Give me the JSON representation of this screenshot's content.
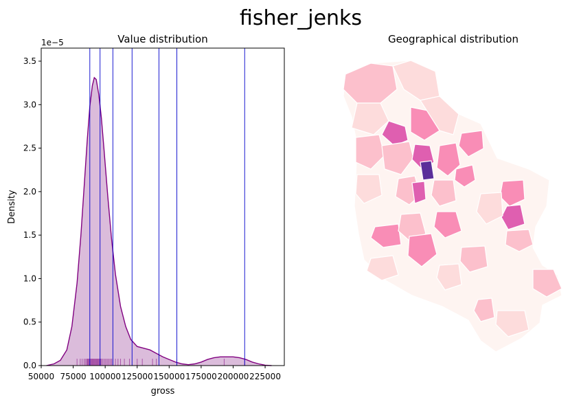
{
  "figure": {
    "suptitle": "fisher_jenks"
  },
  "chart_data": [
    {
      "type": "area",
      "title": "Value distribution",
      "xlabel": "gross",
      "ylabel": "Density",
      "y_scale_label": "1e−5",
      "xlim": [
        50000,
        240000
      ],
      "ylim": [
        0,
        3.65
      ],
      "x_ticks": [
        50000,
        75000,
        100000,
        125000,
        150000,
        175000,
        200000,
        225000
      ],
      "x_tick_labels": [
        "50000",
        "75000",
        "100000",
        "125000",
        "150000",
        "175000",
        "200000",
        "225000"
      ],
      "y_ticks": [
        0.0,
        0.5,
        1.0,
        1.5,
        2.0,
        2.5,
        3.0,
        3.5
      ],
      "y_tick_labels": [
        "0.0",
        "0.5",
        "1.0",
        "1.5",
        "2.0",
        "2.5",
        "3.0",
        "3.5"
      ],
      "kde": {
        "x": [
          54000,
          60000,
          65000,
          70000,
          74000,
          78000,
          81000,
          84000,
          86000,
          88000,
          90000,
          91500,
          93000,
          95000,
          97000,
          99000,
          102000,
          105000,
          108000,
          112000,
          116000,
          120000,
          125000,
          130000,
          135000,
          140000,
          145000,
          150000,
          155000,
          160000,
          165000,
          170000,
          175000,
          180000,
          185000,
          190000,
          195000,
          200000,
          205000,
          210000,
          215000,
          220000,
          225000,
          230000
        ],
        "y": [
          0.0,
          0.02,
          0.06,
          0.18,
          0.45,
          0.95,
          1.5,
          2.15,
          2.6,
          2.98,
          3.22,
          3.31,
          3.29,
          3.12,
          2.85,
          2.5,
          1.95,
          1.45,
          1.05,
          0.68,
          0.45,
          0.3,
          0.22,
          0.2,
          0.18,
          0.14,
          0.1,
          0.07,
          0.04,
          0.02,
          0.01,
          0.02,
          0.04,
          0.07,
          0.09,
          0.1,
          0.1,
          0.1,
          0.09,
          0.07,
          0.04,
          0.02,
          0.005,
          0.0
        ],
        "units": "density × 1e-5"
      },
      "class_breaks": [
        88000,
        96000,
        106000,
        121000,
        142000,
        156000,
        209000
      ],
      "rug_x": [
        78000,
        80500,
        82000,
        83500,
        84500,
        85500,
        86000,
        86500,
        87000,
        87500,
        88000,
        88500,
        89000,
        89500,
        90000,
        90500,
        91000,
        91500,
        92000,
        92500,
        93000,
        93500,
        94000,
        94500,
        95000,
        95500,
        96000,
        96500,
        97000,
        98000,
        99000,
        100000,
        101000,
        102000,
        103000,
        104000,
        105000,
        106000,
        108000,
        110000,
        112000,
        115000,
        119000,
        125000,
        129000,
        137000,
        140000,
        156000,
        193000,
        209000
      ],
      "colors": {
        "kde": "#800080",
        "fill": "#dbbcdb",
        "breaks": "#0000cc",
        "rug": "#800080"
      }
    },
    {
      "type": "map",
      "title": "Geographical distribution",
      "palette": [
        "#fef4f1",
        "#fddcdc",
        "#fcc0cc",
        "#f98db6",
        "#df5fb0",
        "#9f2f9f",
        "#5a2f9a"
      ]
    }
  ]
}
